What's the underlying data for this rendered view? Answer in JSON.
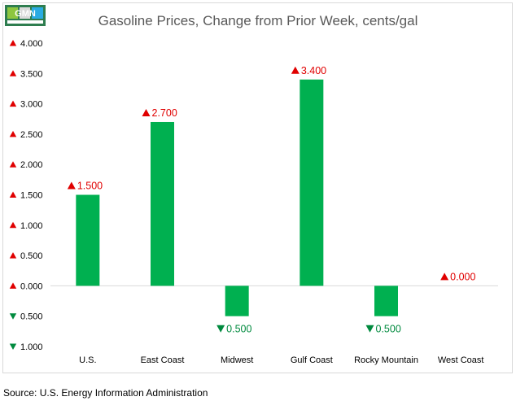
{
  "chart_data": {
    "type": "bar",
    "title": "Gasoline Prices, Change from Prior Week, cents/gal",
    "categories": [
      "U.S.",
      "East Coast",
      "Midwest",
      "Gulf Coast",
      "Rocky Mountain",
      "West Coast"
    ],
    "values": [
      1.5,
      2.7,
      -0.5,
      3.4,
      -0.5,
      0.0
    ],
    "data_labels": [
      "1.500",
      "2.700",
      "0.500",
      "3.400",
      "0.500",
      "0.000"
    ],
    "ylim": [
      -1.0,
      4.0
    ],
    "y_ticks": [
      {
        "value": 4.0,
        "label": "4.000"
      },
      {
        "value": 3.5,
        "label": "3.500"
      },
      {
        "value": 3.0,
        "label": "3.000"
      },
      {
        "value": 2.5,
        "label": "2.500"
      },
      {
        "value": 2.0,
        "label": "2.000"
      },
      {
        "value": 1.5,
        "label": "1.500"
      },
      {
        "value": 1.0,
        "label": "1.000"
      },
      {
        "value": 0.5,
        "label": "0.500"
      },
      {
        "value": 0.0,
        "label": "0.000"
      },
      {
        "value": -0.5,
        "label": "0.500"
      },
      {
        "value": -1.0,
        "label": "1.000"
      }
    ],
    "grid": false,
    "legend": "none",
    "bar_color": "#00b050",
    "up_color": "#e00000",
    "down_color": "#008a3e"
  },
  "logo": {
    "text": "GMN"
  },
  "source": "Source: U.S. Energy Information Administration"
}
